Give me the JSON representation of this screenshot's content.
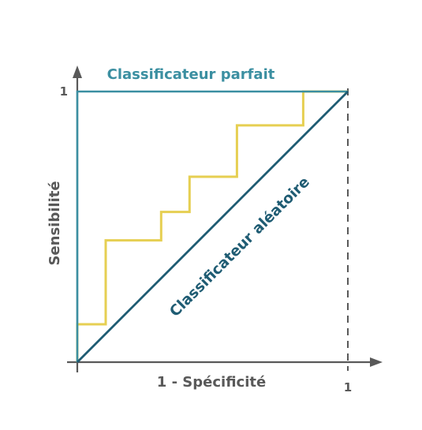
{
  "chart_data": {
    "type": "line",
    "xlabel": "1 - Spécificité",
    "ylabel": "Sensibilité",
    "xlim": [
      0,
      1
    ],
    "ylim": [
      0,
      1
    ],
    "x_ticks": [
      {
        "value": 1,
        "label": "1"
      }
    ],
    "y_ticks": [
      {
        "value": 1,
        "label": "1"
      }
    ],
    "grid": false,
    "colors": {
      "perfect": "#3b8fa1",
      "random": "#1f5c73",
      "roc": "#e6cf52",
      "axis": "#595959"
    },
    "series": [
      {
        "name": "Classificateur parfait",
        "x": [
          0,
          0,
          1
        ],
        "y": [
          0,
          1,
          1
        ]
      },
      {
        "name": "Classificateur aléatoire",
        "x": [
          0,
          1
        ],
        "y": [
          0,
          1
        ]
      },
      {
        "x": [
          0,
          0,
          0.105,
          0.105,
          0.31,
          0.31,
          0.415,
          0.415,
          0.59,
          0.59,
          0.835,
          0.835,
          1
        ],
        "y": [
          0,
          0.14,
          0.14,
          0.45,
          0.45,
          0.555,
          0.555,
          0.685,
          0.685,
          0.875,
          0.875,
          1,
          1
        ]
      }
    ],
    "annotations": [
      {
        "text": "Classificateur parfait",
        "series": 0
      },
      {
        "text": "Classificateur aléatoire",
        "series": 1
      }
    ]
  }
}
